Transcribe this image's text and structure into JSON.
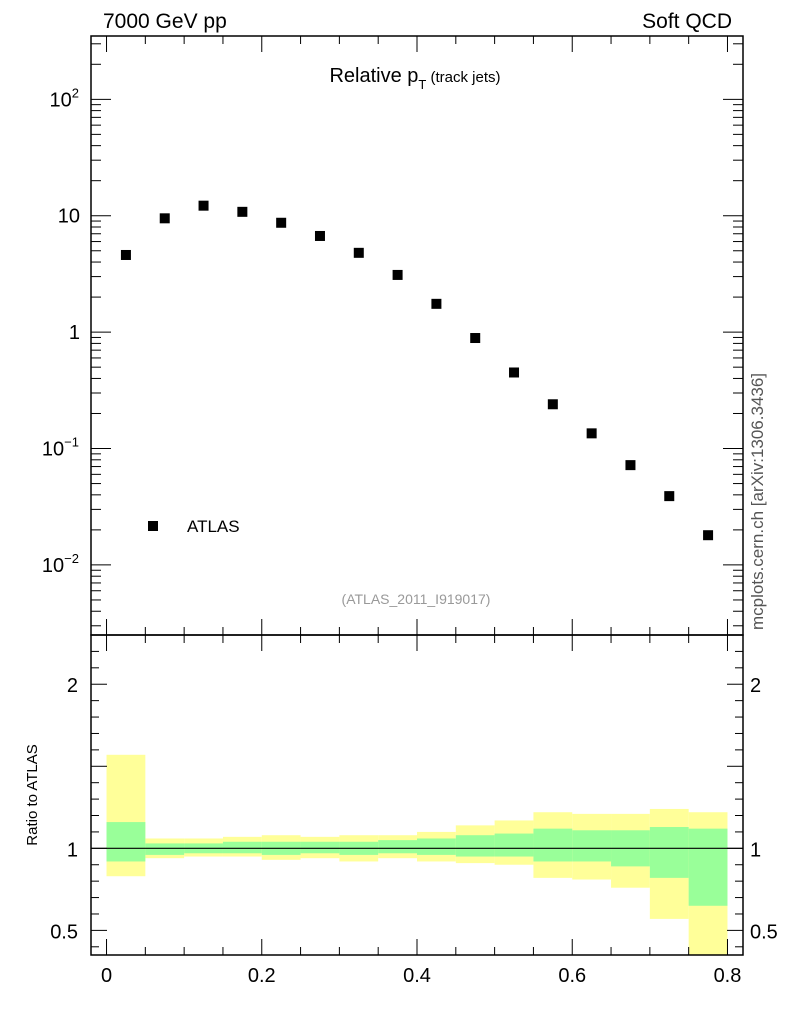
{
  "header": {
    "left_label": "7000 GeV pp",
    "right_label": "Soft QCD",
    "side_label": "mcplots.cern.ch [arXiv:1306.3436]"
  },
  "chart_data": [
    {
      "type": "scatter",
      "panel": "main",
      "title_main": "Relative p",
      "title_sub": "T",
      "title_suffix": " (track jets)",
      "analysis_label": "(ATLAS_2011_I919017)",
      "yscale": "log",
      "ylim": [
        0.0025,
        350
      ],
      "xlim": [
        -0.02,
        0.82
      ],
      "ytick_labels": [
        {
          "value": 100,
          "base": "10",
          "exp": "2"
        },
        {
          "value": 10,
          "base": "10",
          "exp": ""
        },
        {
          "value": 1,
          "base": "1",
          "exp": ""
        },
        {
          "value": 0.1,
          "base": "10",
          "exp": "−1"
        },
        {
          "value": 0.01,
          "base": "10",
          "exp": "−2"
        }
      ],
      "legend": {
        "label": "ATLAS",
        "position": "bottom-left"
      },
      "series": [
        {
          "name": "ATLAS",
          "x": [
            0.025,
            0.075,
            0.125,
            0.175,
            0.225,
            0.275,
            0.325,
            0.375,
            0.425,
            0.475,
            0.525,
            0.575,
            0.625,
            0.675,
            0.725,
            0.775
          ],
          "values": [
            4.6,
            9.5,
            12.2,
            10.8,
            8.7,
            6.7,
            4.8,
            3.1,
            1.75,
            0.89,
            0.45,
            0.24,
            0.135,
            0.072,
            0.039,
            0.018
          ]
        }
      ]
    },
    {
      "type": "area",
      "panel": "ratio",
      "ylabel": "Ratio to ATLAS",
      "ylim": [
        0.35,
        2.3
      ],
      "xlim": [
        -0.02,
        0.82
      ],
      "ytick_labels": [
        {
          "value": 0.5,
          "text": "0.5"
        },
        {
          "value": 1,
          "text": "1"
        },
        {
          "value": 2,
          "text": "2"
        }
      ],
      "xtick_labels": [
        {
          "value": 0,
          "text": "0"
        },
        {
          "value": 0.2,
          "text": "0.2"
        },
        {
          "value": 0.4,
          "text": "0.4"
        },
        {
          "value": 0.6,
          "text": "0.6"
        },
        {
          "value": 0.8,
          "text": "0.8"
        }
      ],
      "bin_edges": [
        0.0,
        0.05,
        0.1,
        0.15,
        0.2,
        0.25,
        0.3,
        0.35,
        0.4,
        0.45,
        0.5,
        0.55,
        0.6,
        0.65,
        0.7,
        0.75,
        0.8
      ],
      "bands": [
        {
          "name": "total uncertainty",
          "color": "#ffff99",
          "low": [
            0.83,
            0.94,
            0.95,
            0.95,
            0.93,
            0.94,
            0.92,
            0.94,
            0.92,
            0.91,
            0.9,
            0.82,
            0.81,
            0.76,
            0.57,
            0.3
          ],
          "high": [
            1.57,
            1.06,
            1.06,
            1.07,
            1.08,
            1.07,
            1.08,
            1.08,
            1.1,
            1.14,
            1.17,
            1.22,
            1.21,
            1.21,
            1.24,
            1.22
          ]
        },
        {
          "name": "statistical uncertainty",
          "color": "#99ff99",
          "low": [
            0.92,
            0.96,
            0.97,
            0.97,
            0.96,
            0.97,
            0.96,
            0.97,
            0.96,
            0.95,
            0.95,
            0.92,
            0.92,
            0.89,
            0.82,
            0.65
          ],
          "high": [
            1.16,
            1.03,
            1.03,
            1.04,
            1.04,
            1.04,
            1.04,
            1.05,
            1.06,
            1.08,
            1.09,
            1.12,
            1.11,
            1.11,
            1.13,
            1.12
          ]
        }
      ],
      "reference_line": 1
    }
  ]
}
